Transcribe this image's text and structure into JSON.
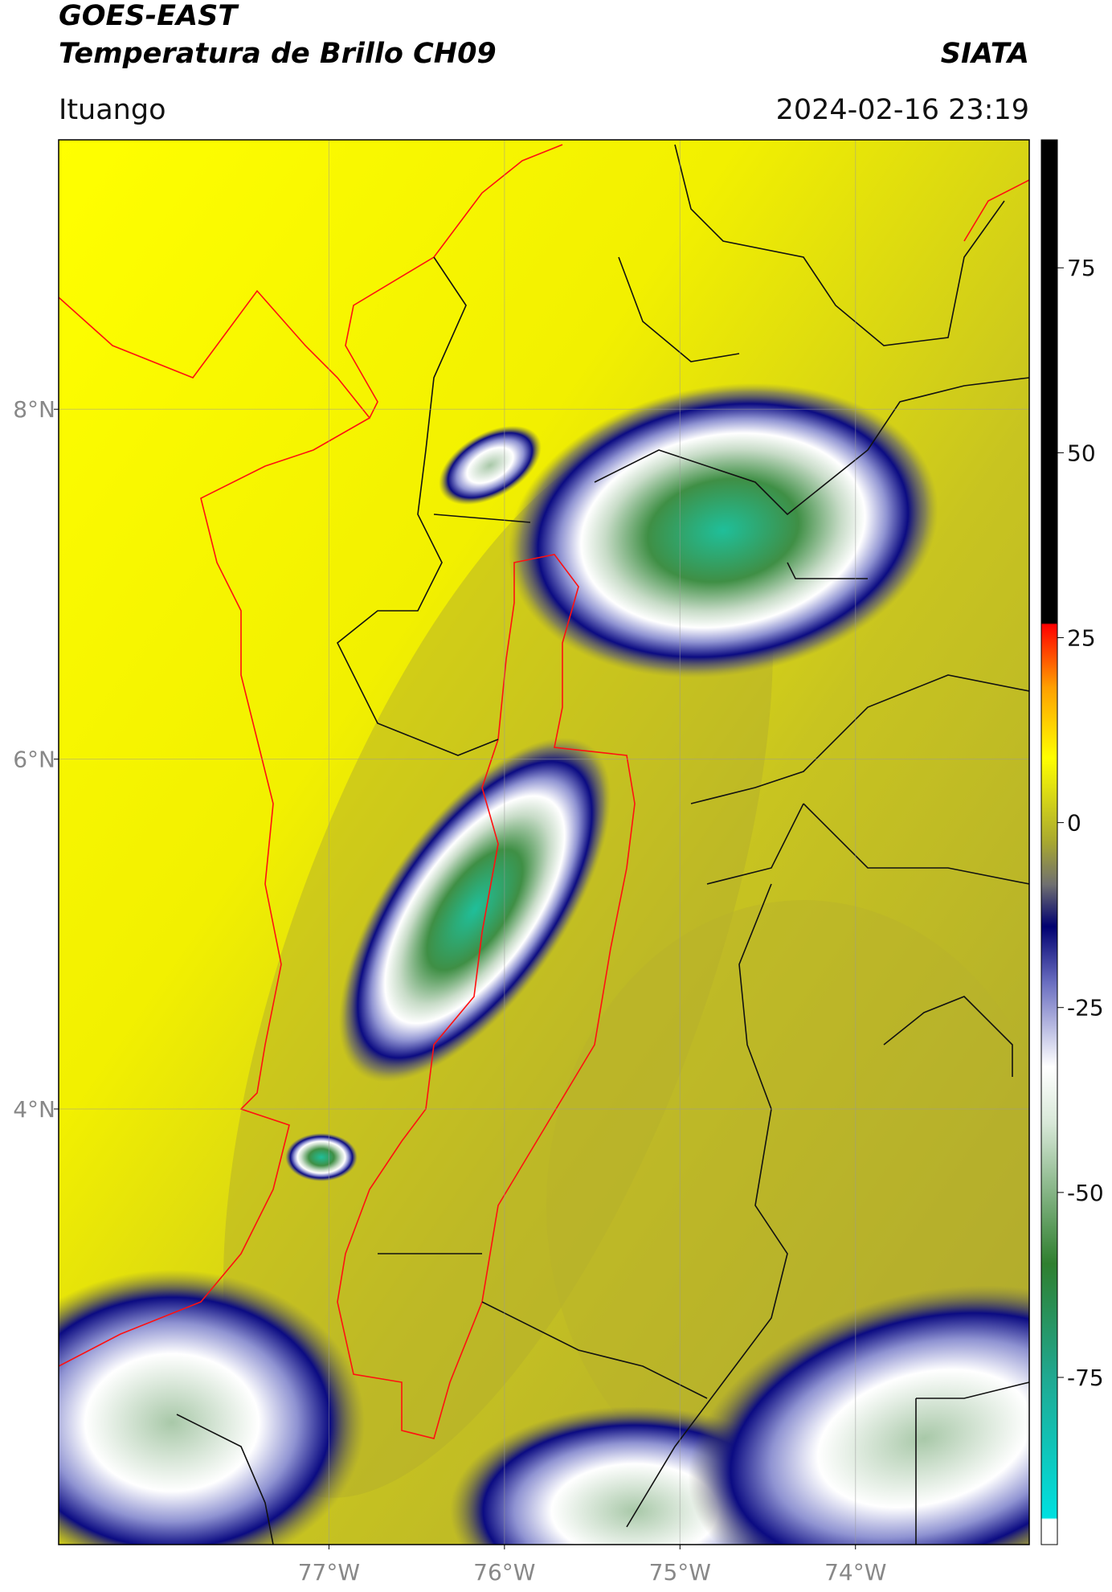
{
  "header": {
    "title": "GOES-EAST",
    "subtitle": "Temperatura de Brillo CH09",
    "source": "SIATA",
    "location": "Ituango",
    "timestamp": "2024-02-16 23:19"
  },
  "map": {
    "xlim": [
      -78.54,
      -73.01
    ],
    "ylim": [
      1.51,
      9.54
    ],
    "xticks": [
      {
        "value": -77,
        "label": "77°W"
      },
      {
        "value": -76,
        "label": "76°W"
      },
      {
        "value": -75,
        "label": "75°W"
      },
      {
        "value": -74,
        "label": "74°W"
      }
    ],
    "yticks": [
      {
        "value": 8,
        "label": "8°N"
      },
      {
        "value": 6,
        "label": "6°N"
      },
      {
        "value": 4,
        "label": "4°N"
      }
    ],
    "grid": true
  },
  "colorbar": {
    "lim": [
      -97.6,
      92.3
    ],
    "ticks": [
      75,
      50,
      25,
      0,
      -25,
      -50,
      -75
    ]
  }
}
